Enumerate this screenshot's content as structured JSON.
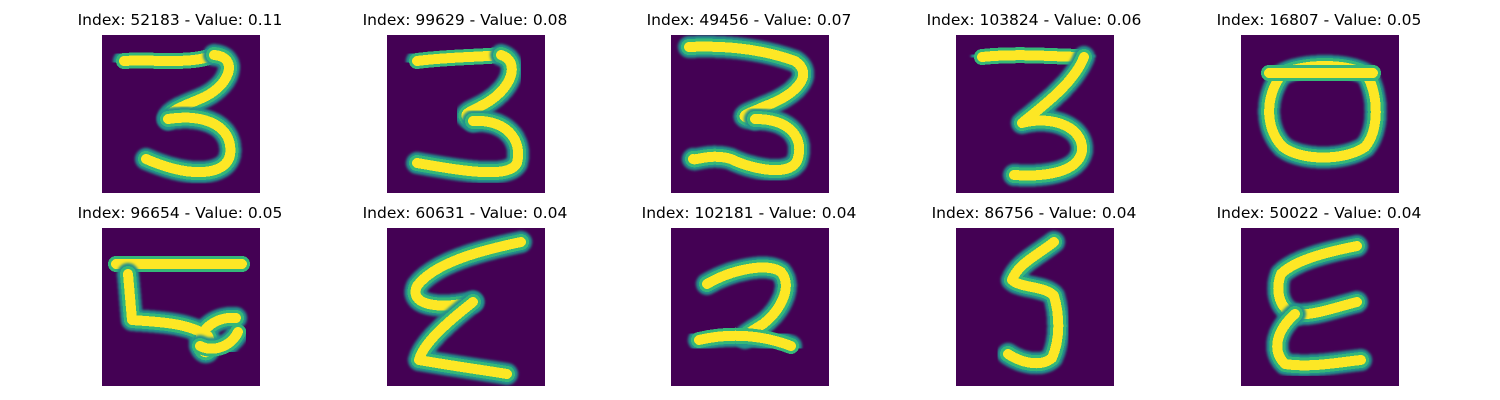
{
  "colormap": {
    "background": "#440154",
    "mid": "#21918c",
    "edge": "#35b779",
    "core": "#fde725"
  },
  "figure": {
    "panels": [
      {
        "title": "Index: 52183 - Value: 0.11",
        "glyph": "three-a"
      },
      {
        "title": "Index: 99629 - Value: 0.08",
        "glyph": "three-b"
      },
      {
        "title": "Index: 49456 - Value: 0.07",
        "glyph": "three-c"
      },
      {
        "title": "Index: 103824 - Value: 0.06",
        "glyph": "three-d"
      },
      {
        "title": "Index: 16807 - Value: 0.05",
        "glyph": "zero"
      },
      {
        "title": "Index: 96654 - Value: 0.05",
        "glyph": "odd-b"
      },
      {
        "title": "Index: 60631 - Value: 0.04",
        "glyph": "sigma-a"
      },
      {
        "title": "Index: 102181 - Value: 0.04",
        "glyph": "two"
      },
      {
        "title": "Index: 86756 - Value: 0.04",
        "glyph": "five"
      },
      {
        "title": "Index: 50022 - Value: 0.04",
        "glyph": "sigma-b"
      }
    ]
  }
}
